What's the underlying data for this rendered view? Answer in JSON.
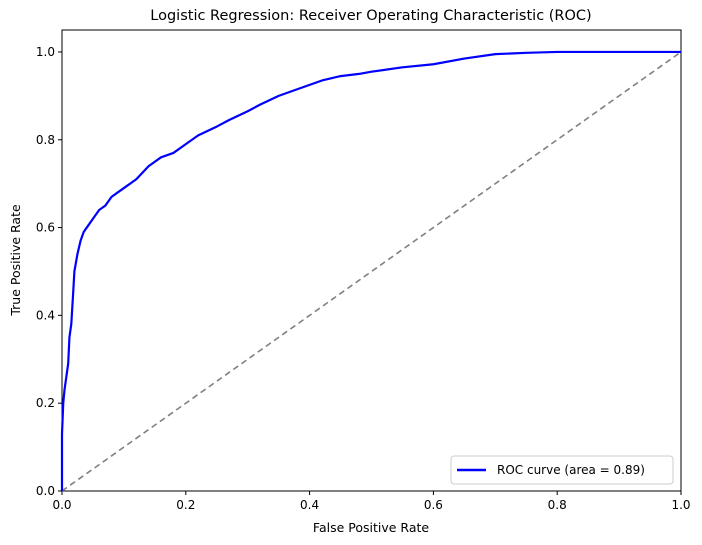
{
  "chart_data": {
    "type": "line",
    "title": "Logistic Regression: Receiver Operating Characteristic (ROC)",
    "xlabel": "False Positive Rate",
    "ylabel": "True Positive Rate",
    "xlim": [
      0.0,
      1.0
    ],
    "ylim": [
      0.0,
      1.05
    ],
    "xticks": [
      "0.0",
      "0.2",
      "0.4",
      "0.6",
      "0.8",
      "1.0"
    ],
    "yticks": [
      "0.0",
      "0.2",
      "0.4",
      "0.6",
      "0.8",
      "1.0"
    ],
    "grid": false,
    "legend_position": "lower-right",
    "series": [
      {
        "name": "ROC curve (area = 0.89)",
        "color": "#0000ff",
        "style": "solid",
        "x": [
          0.0,
          0.0,
          0.002,
          0.004,
          0.006,
          0.008,
          0.01,
          0.012,
          0.015,
          0.018,
          0.02,
          0.025,
          0.03,
          0.035,
          0.04,
          0.045,
          0.05,
          0.06,
          0.07,
          0.08,
          0.09,
          0.1,
          0.12,
          0.14,
          0.16,
          0.18,
          0.2,
          0.22,
          0.25,
          0.27,
          0.3,
          0.32,
          0.35,
          0.38,
          0.4,
          0.42,
          0.45,
          0.48,
          0.5,
          0.55,
          0.6,
          0.65,
          0.7,
          0.75,
          0.8,
          0.9,
          1.0
        ],
        "y": [
          0.0,
          0.13,
          0.2,
          0.23,
          0.25,
          0.27,
          0.29,
          0.35,
          0.38,
          0.45,
          0.5,
          0.54,
          0.57,
          0.59,
          0.6,
          0.61,
          0.62,
          0.64,
          0.65,
          0.67,
          0.68,
          0.69,
          0.71,
          0.74,
          0.76,
          0.77,
          0.79,
          0.81,
          0.83,
          0.845,
          0.865,
          0.88,
          0.9,
          0.915,
          0.925,
          0.935,
          0.945,
          0.95,
          0.955,
          0.965,
          0.972,
          0.985,
          0.995,
          0.998,
          1.0,
          1.0,
          1.0
        ]
      },
      {
        "name": "",
        "color": "#808080",
        "style": "dashed",
        "x": [
          0.0,
          1.0
        ],
        "y": [
          0.0,
          1.0
        ]
      }
    ]
  }
}
